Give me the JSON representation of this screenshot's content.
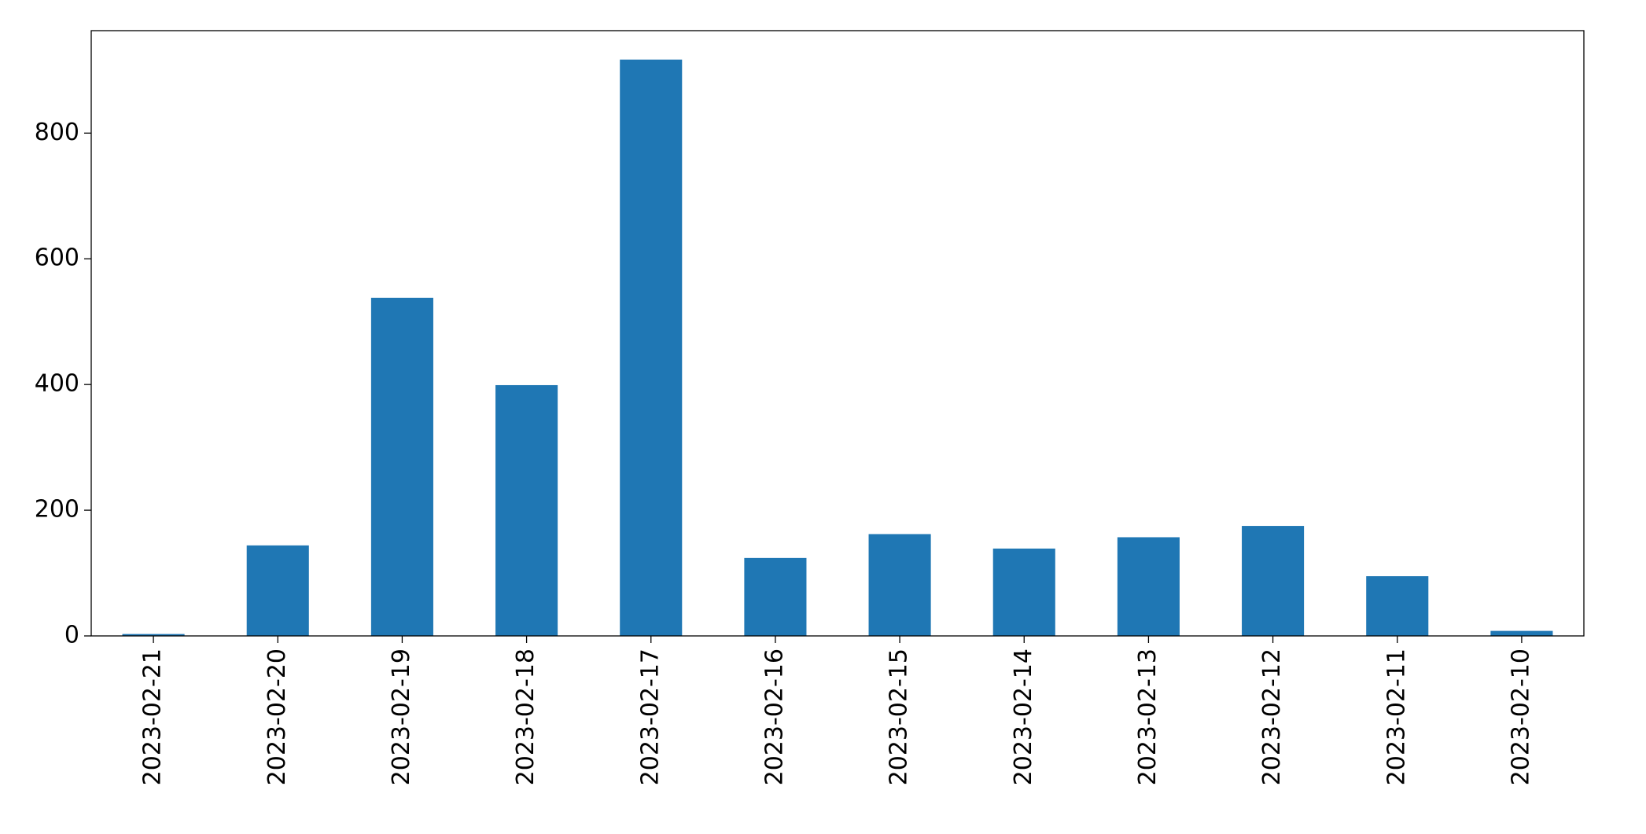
{
  "chart_data": {
    "type": "bar",
    "categories": [
      "2023-02-21",
      "2023-02-20",
      "2023-02-19",
      "2023-02-18",
      "2023-02-17",
      "2023-02-16",
      "2023-02-15",
      "2023-02-14",
      "2023-02-13",
      "2023-02-12",
      "2023-02-11",
      "2023-02-10"
    ],
    "values": [
      3,
      144,
      538,
      399,
      917,
      124,
      162,
      139,
      157,
      175,
      95,
      8
    ],
    "color": "#1f77b4",
    "ylim": [
      0,
      963
    ],
    "yticks": [
      0,
      200,
      400,
      600,
      800
    ],
    "grid": false
  }
}
